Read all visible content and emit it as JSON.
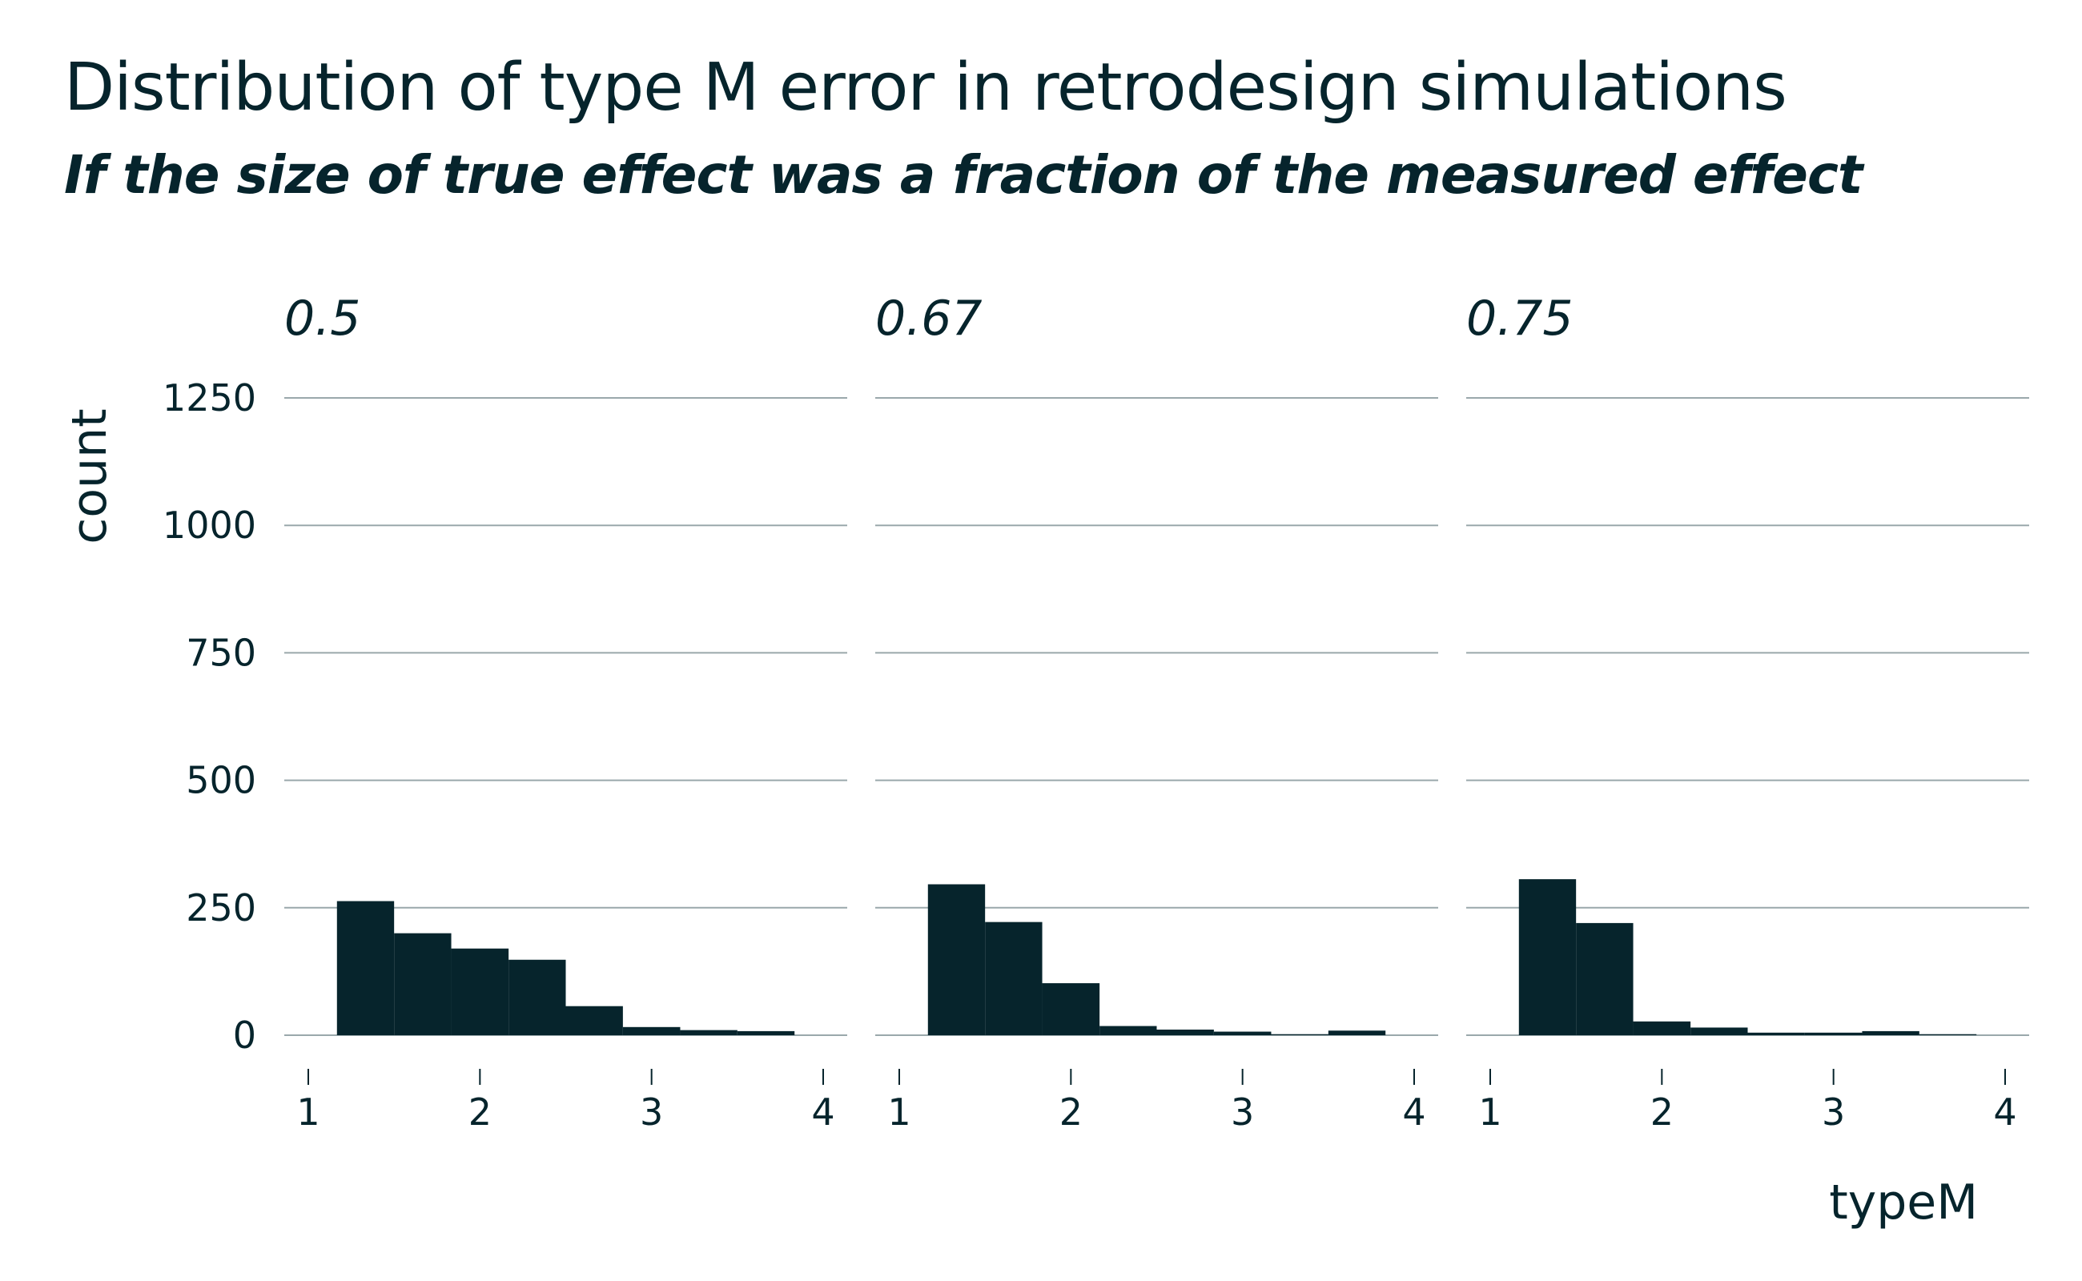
{
  "chart_data": {
    "type": "bar",
    "title": "Distribution of type M error in retrodesign simulations",
    "subtitle": "If the size of true effect was a fraction of the measured effect",
    "xlabel": "typeM",
    "ylabel": "count",
    "xlim": [
      1,
      4
    ],
    "ylim": [
      0,
      1250
    ],
    "xticks": [
      1,
      2,
      3,
      4
    ],
    "yticks": [
      0,
      250,
      500,
      750,
      1000,
      1250
    ],
    "grid": "horizontal",
    "bar_color": "#06242c",
    "grid_color": "#9aa8ab",
    "bin_width": 0.333,
    "facets": [
      {
        "label": "0.5",
        "bins": [
          {
            "x0": 1.167,
            "x1": 1.5,
            "count": 263
          },
          {
            "x0": 1.5,
            "x1": 1.833,
            "count": 200
          },
          {
            "x0": 1.833,
            "x1": 2.167,
            "count": 170
          },
          {
            "x0": 2.167,
            "x1": 2.5,
            "count": 148
          },
          {
            "x0": 2.5,
            "x1": 2.833,
            "count": 57
          },
          {
            "x0": 2.833,
            "x1": 3.167,
            "count": 16
          },
          {
            "x0": 3.167,
            "x1": 3.5,
            "count": 10
          },
          {
            "x0": 3.5,
            "x1": 3.833,
            "count": 8
          }
        ]
      },
      {
        "label": "0.67",
        "bins": [
          {
            "x0": 1.167,
            "x1": 1.5,
            "count": 296
          },
          {
            "x0": 1.5,
            "x1": 1.833,
            "count": 222
          },
          {
            "x0": 1.833,
            "x1": 2.167,
            "count": 102
          },
          {
            "x0": 2.167,
            "x1": 2.5,
            "count": 18
          },
          {
            "x0": 2.5,
            "x1": 2.833,
            "count": 11
          },
          {
            "x0": 2.833,
            "x1": 3.167,
            "count": 7
          },
          {
            "x0": 3.167,
            "x1": 3.5,
            "count": 2
          },
          {
            "x0": 3.5,
            "x1": 3.833,
            "count": 9
          }
        ]
      },
      {
        "label": "0.75",
        "bins": [
          {
            "x0": 1.167,
            "x1": 1.5,
            "count": 306
          },
          {
            "x0": 1.5,
            "x1": 1.833,
            "count": 220
          },
          {
            "x0": 1.833,
            "x1": 2.167,
            "count": 27
          },
          {
            "x0": 2.167,
            "x1": 2.5,
            "count": 15
          },
          {
            "x0": 2.5,
            "x1": 2.833,
            "count": 5
          },
          {
            "x0": 2.833,
            "x1": 3.167,
            "count": 5
          },
          {
            "x0": 3.167,
            "x1": 3.5,
            "count": 8
          },
          {
            "x0": 3.5,
            "x1": 3.833,
            "count": 2
          }
        ]
      }
    ]
  }
}
